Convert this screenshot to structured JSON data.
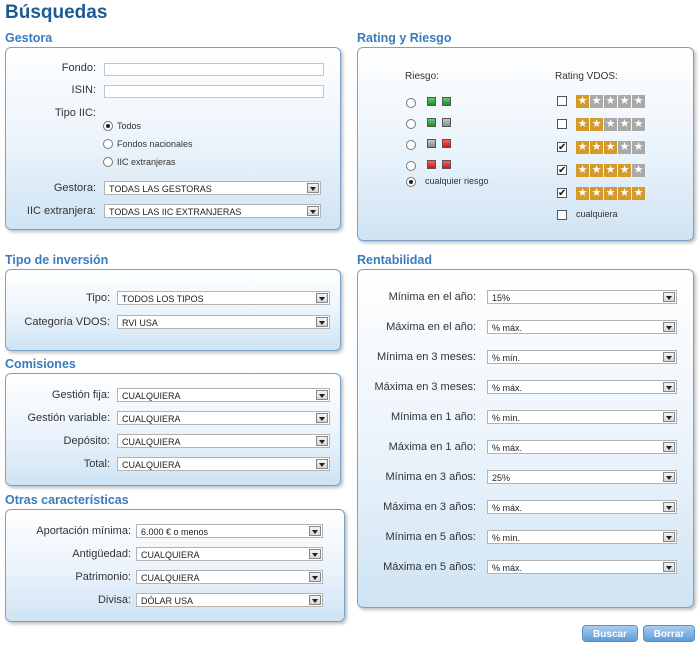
{
  "page_title": "Búsquedas",
  "gestora": {
    "title": "Gestora",
    "fondo_label": "Fondo:",
    "fondo_value": "",
    "isin_label": "ISIN:",
    "isin_value": "",
    "tipo_label": "Tipo IIC:",
    "tipo_options": [
      "Todos",
      "Fondos nacionales",
      "IIC extranjeras"
    ],
    "tipo_selected": "Todos",
    "gestora_label": "Gestora:",
    "gestora_value": "TODAS LAS GESTORAS",
    "extranjera_label": "IIC extranjera:",
    "extranjera_value": "TODAS LAS IIC EXTRANJERAS"
  },
  "rating": {
    "title": "Rating y Riesgo",
    "riesgo_label": "Riesgo:",
    "riesgo_options": [
      {
        "colors": [
          "green",
          "green"
        ]
      },
      {
        "colors": [
          "green",
          "gray"
        ]
      },
      {
        "colors": [
          "gray",
          "red"
        ]
      },
      {
        "colors": [
          "red",
          "red"
        ]
      }
    ],
    "riesgo_any": "cualquier riesgo",
    "riesgo_selected": "cualquier riesgo",
    "vdos_label": "Rating VDOS:",
    "vdos_options": [
      {
        "stars": 1,
        "checked": false
      },
      {
        "stars": 2,
        "checked": false
      },
      {
        "stars": 3,
        "checked": true
      },
      {
        "stars": 4,
        "checked": true
      },
      {
        "stars": 5,
        "checked": true
      }
    ],
    "vdos_any": "cualquiera",
    "vdos_any_checked": false,
    "star_glyph": "★"
  },
  "tipo_inversion": {
    "title": "Tipo de inversión",
    "tipo_label": "Tipo:",
    "tipo_value": "TODOS LOS TIPOS",
    "categoria_label": "Categoría VDOS:",
    "categoria_value": "RVI USA"
  },
  "comisiones": {
    "title": "Comisiones",
    "fields": [
      {
        "label": "Gestión fija:",
        "value": "CUALQUIERA"
      },
      {
        "label": "Gestión variable:",
        "value": "CUALQUIERA"
      },
      {
        "label": "Depósito:",
        "value": "CUALQUIERA"
      },
      {
        "label": "Total:",
        "value": "CUALQUIERA"
      }
    ]
  },
  "otras": {
    "title": "Otras características",
    "fields": [
      {
        "label": "Aportación mínima:",
        "value": "6.000 € o menos"
      },
      {
        "label": "Antigüedad:",
        "value": "CUALQUIERA"
      },
      {
        "label": "Patrimonio:",
        "value": "CUALQUIERA"
      },
      {
        "label": "Divisa:",
        "value": "DÓLAR USA"
      }
    ]
  },
  "rentabilidad": {
    "title": "Rentabilidad",
    "fields": [
      {
        "label": "Mínima en el año:",
        "value": "15%"
      },
      {
        "label": "Máxima en el año:",
        "value": "% máx."
      },
      {
        "label": "Mínima en 3 meses:",
        "value": "% mín."
      },
      {
        "label": "Máxima en 3 meses:",
        "value": "% máx."
      },
      {
        "label": "Mínima en 1 año:",
        "value": "% mín."
      },
      {
        "label": "Máxima en 1 año:",
        "value": "% máx."
      },
      {
        "label": "Mínima en 3 años:",
        "value": "25%"
      },
      {
        "label": "Máxima en 3 años:",
        "value": "% máx."
      },
      {
        "label": "Mínima en 5 años:",
        "value": "% mín."
      },
      {
        "label": "Máxima en 5 años:",
        "value": "% máx."
      }
    ]
  },
  "buttons": {
    "buscar": "Buscar",
    "borrar": "Borrar"
  },
  "colors": {
    "title": "#1a5a95",
    "section": "#3a7bbf",
    "star": "#d49a2a",
    "button": "#5e9bd6"
  }
}
